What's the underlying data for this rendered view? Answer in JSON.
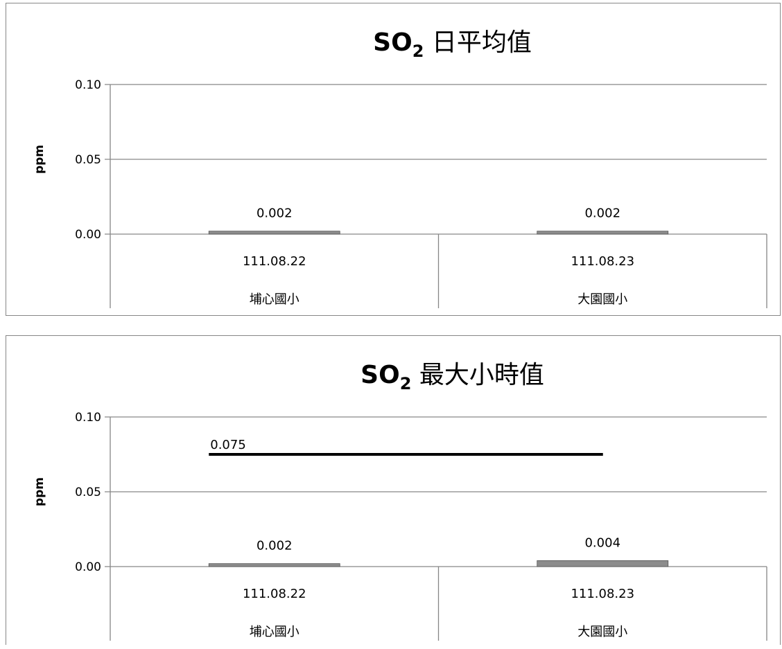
{
  "chart_data": [
    {
      "type": "bar",
      "title": {
        "main": "SO",
        "sub": "2",
        "rest": " 日平均值"
      },
      "ylabel": "ppm",
      "ylim": [
        0,
        0.1
      ],
      "yticks": [
        "0.10",
        "0.05",
        "0.00"
      ],
      "categories": [
        {
          "date": "111.08.22",
          "site": "埔心國小"
        },
        {
          "date": "111.08.23",
          "site": "大園國小"
        }
      ],
      "values": [
        0.002,
        0.002
      ],
      "value_labels": [
        "0.002",
        "0.002"
      ],
      "grid": true,
      "colors": {
        "bar": "#8c8c8c",
        "grid": "#868686"
      }
    },
    {
      "type": "bar",
      "title": {
        "main": "SO",
        "sub": "2",
        "rest": " 最大小時值"
      },
      "ylabel": "ppm",
      "ylim": [
        0,
        0.1
      ],
      "yticks": [
        "0.10",
        "0.05",
        "0.00"
      ],
      "categories": [
        {
          "date": "111.08.22",
          "site": "埔心國小"
        },
        {
          "date": "111.08.23",
          "site": "大園國小"
        }
      ],
      "values": [
        0.002,
        0.004
      ],
      "value_labels": [
        "0.002",
        "0.004"
      ],
      "reference_line": {
        "value": 0.075,
        "label": "0.075"
      },
      "grid": true,
      "colors": {
        "bar": "#8c8c8c",
        "grid": "#868686",
        "reference": "#000000"
      }
    }
  ]
}
